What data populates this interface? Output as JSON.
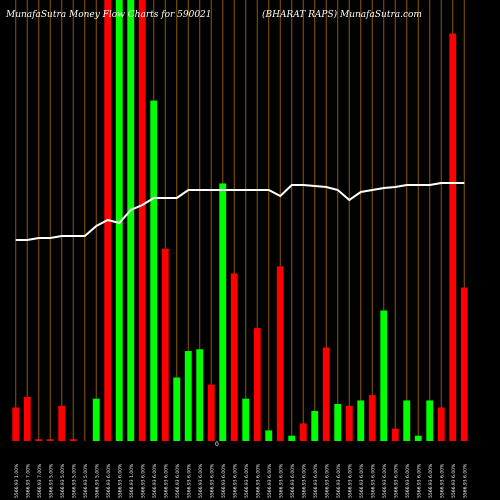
{
  "title_left": "MunafaSutra  Money Flow  Charts for 590021",
  "title_right": "(BHARAT RAPS) MunafaSutra.com",
  "colors": {
    "background": "#000000",
    "up": "#00ff00",
    "down": "#ff0000",
    "grid": "#8B5A00",
    "line": "#ffffff",
    "label": "#ffffff"
  },
  "chart_data": {
    "type": "bar",
    "values": [
      19,
      25,
      1,
      1,
      20,
      1,
      0,
      24,
      250,
      250,
      250,
      250,
      193,
      109,
      36,
      51,
      52,
      32,
      146,
      95,
      24,
      64,
      6,
      99,
      3,
      10,
      17,
      53,
      21,
      20,
      23,
      26,
      74,
      7,
      23,
      3,
      23,
      19,
      231,
      87
    ],
    "colors": [
      "red",
      "red",
      "red",
      "red",
      "red",
      "red",
      "red",
      "green",
      "red",
      "green",
      "green",
      "red",
      "green",
      "red",
      "green",
      "green",
      "green",
      "red",
      "green",
      "red",
      "green",
      "red",
      "green",
      "red",
      "green",
      "red",
      "green",
      "red",
      "green",
      "red",
      "green",
      "red",
      "green",
      "red",
      "green",
      "green",
      "green",
      "red",
      "red",
      "red"
    ],
    "line": [
      240,
      240,
      238,
      238,
      236,
      236,
      236,
      226,
      220,
      223,
      210,
      205,
      198,
      198,
      198,
      190,
      190,
      190,
      190,
      190,
      190,
      190,
      190,
      196,
      185,
      185,
      186,
      187,
      190,
      200,
      192,
      190,
      188,
      187,
      185,
      185,
      185,
      183,
      183,
      183
    ],
    "x_labels": [
      "5566.93 1.00%",
      "5566.93 7.00%",
      "5566.93 7.00%",
      "5566.93 5.00%",
      "5566.93 5.00%",
      "5566.93 5.00%",
      "5566.93 5.00%",
      "5566.93 5.00%",
      "5566.93 6.00%",
      "5566.93 6.00%",
      "5566.93 1.00%",
      "5566.93 6.00%",
      "5566.93 6.00%",
      "5566.93 6.00%",
      "5566.93 6.00%",
      "5566.93 6.00%",
      "5566.93 6.00%",
      "5566.93 6.00%",
      "5566.93 6.00%",
      "5566.93 6.00%",
      "5566.93 6.00%",
      "5566.93 6.00%",
      "5566.93 6.00%",
      "5566.93 6.00%",
      "5566.93 6.00%",
      "5566.93 6.00%",
      "5566.93 6.00%",
      "5566.93 6.00%",
      "5566.93 6.00%",
      "5566.93 6.00%",
      "5566.93 6.00%",
      "5566.93 6.00%",
      "5566.93 6.00%",
      "5566.93 6.00%",
      "5566.93 6.00%",
      "5566.93 6.00%",
      "5566.93 6.00%",
      "5566.93 6.00%",
      "5566.93 6.00%",
      "5566.93 6.00%"
    ],
    "zero_label": "0"
  }
}
